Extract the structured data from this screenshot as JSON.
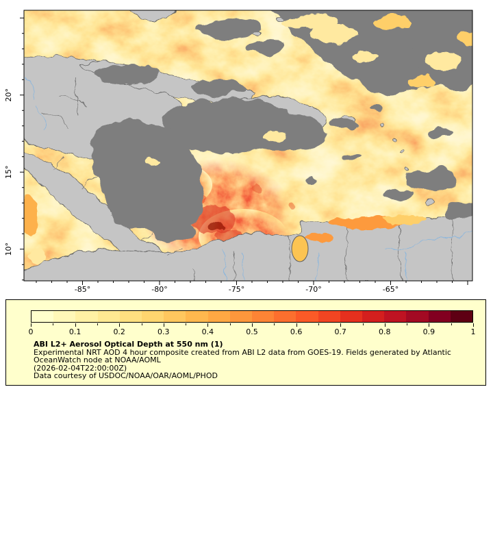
{
  "map": {
    "lat_ticks": [
      "20°",
      "15°",
      "10°"
    ],
    "lon_ticks": [
      "-85°",
      "-80°",
      "-75°",
      "-70°",
      "-65°"
    ]
  },
  "colorbar": {
    "ticks": [
      "0",
      "0.1",
      "0.2",
      "0.3",
      "0.4",
      "0.5",
      "0.6",
      "0.7",
      "0.8",
      "0.9",
      "1"
    ],
    "colors": [
      "#ffffcc",
      "#fff8b8",
      "#fff1a4",
      "#fee992",
      "#fee080",
      "#fed56f",
      "#fec75e",
      "#feb84e",
      "#fea843",
      "#fd973c",
      "#fd8435",
      "#fc6f2e",
      "#fb5a27",
      "#f24522",
      "#e5301e",
      "#d41f1e",
      "#bf1322",
      "#a30a23",
      "#820020",
      "#5e0013"
    ]
  },
  "legend": {
    "title": "ABI L2+ Aerosol Optical Depth at 550 nm (1)",
    "lines": [
      "Experimental NRT AOD 4 hour composite created from ABI L2 data from GOES-19. Fields generated by Atlantic",
      "OceanWatch node at NOAA/AOML",
      "(2026-02-04T22:00:00Z)",
      "Data courtesy of USDOC/NOAA/OAR/AOML/PHOD"
    ]
  },
  "colors": {
    "legend_bg": "#ffffcc",
    "cloud": "#7e7e7e",
    "land": "#c5c5c5",
    "coastline": "#5e5e5e",
    "border": "#6b6b6b",
    "river": "#8cb6dc",
    "frame": "#000000"
  }
}
